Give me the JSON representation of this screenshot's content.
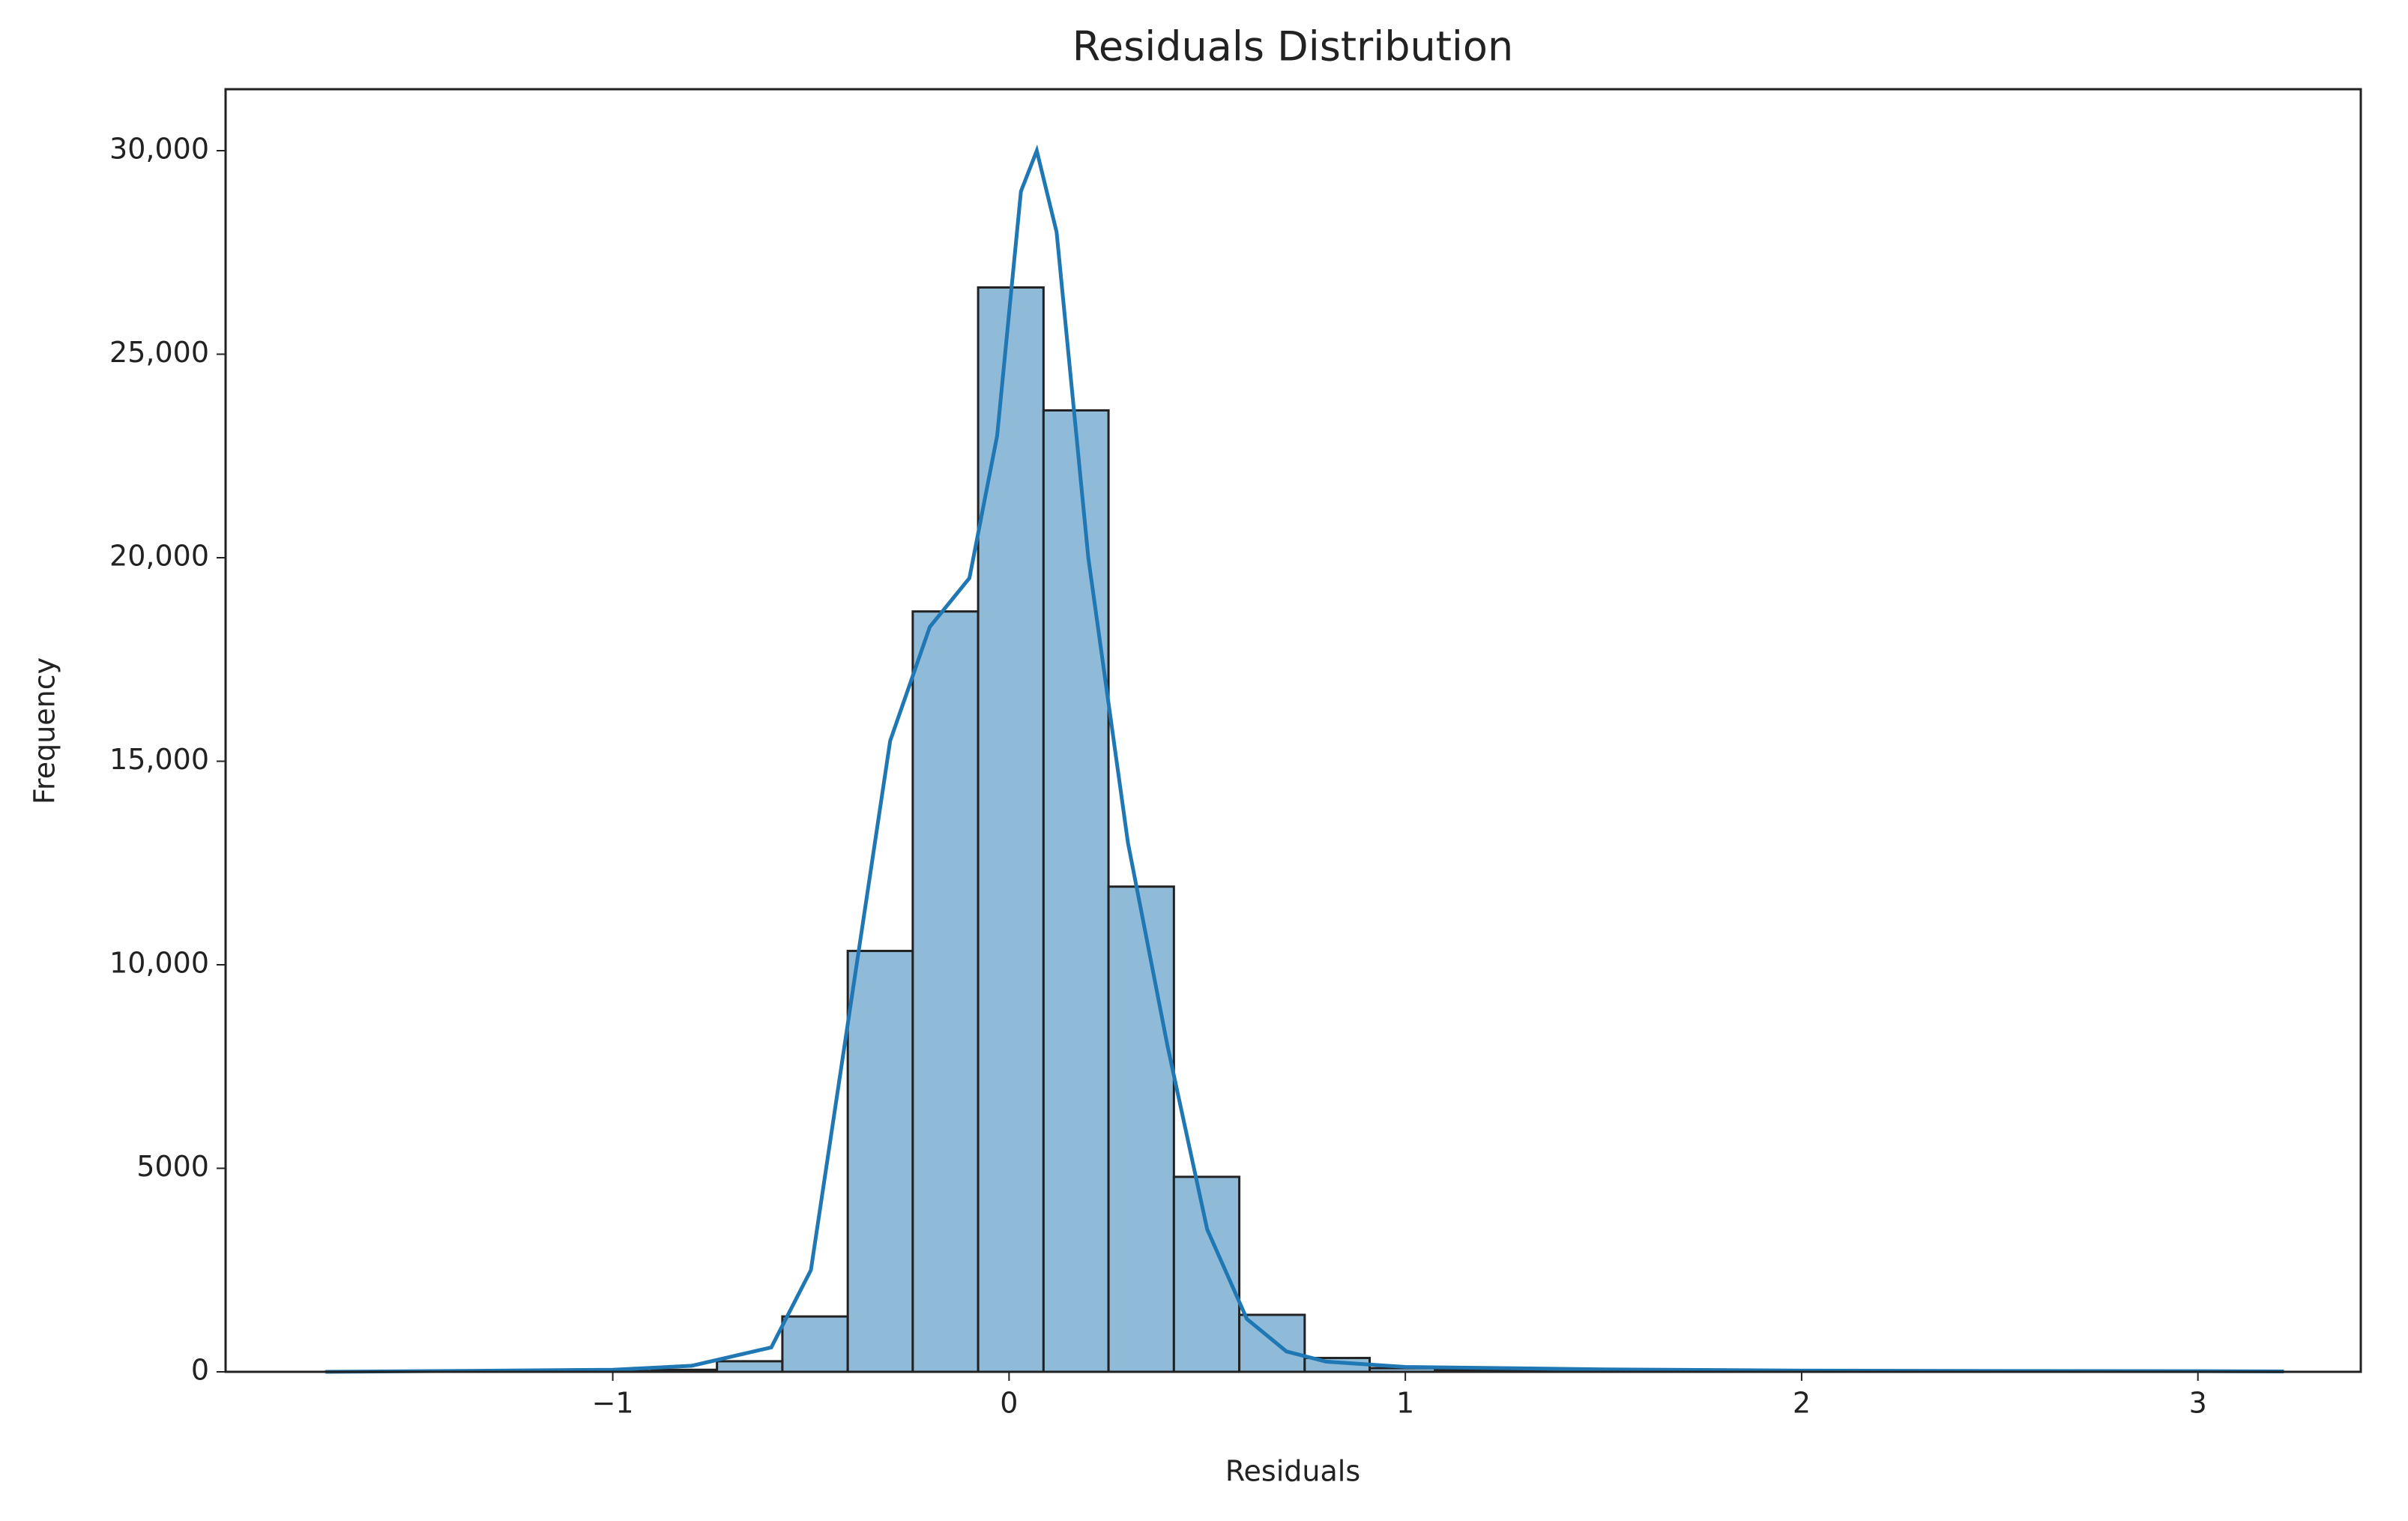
{
  "chart_data": {
    "type": "histogram",
    "title": "Residuals Distribution",
    "xlabel": "Residuals",
    "ylabel": "Frequency",
    "bins": [
      -1.725,
      -1.56,
      -1.396,
      -1.231,
      -1.066,
      -0.902,
      -0.737,
      -0.572,
      -0.407,
      -0.243,
      -0.078,
      0.087,
      0.251,
      0.416,
      0.581,
      0.746,
      0.91,
      1.075,
      1.24,
      1.404,
      1.569,
      1.734,
      1.898,
      2.063,
      2.228,
      2.393,
      2.557,
      2.722,
      2.887,
      3.051,
      3.216
    ],
    "counts": [
      2,
      3,
      5,
      10,
      20,
      50,
      260,
      1360,
      10340,
      18680,
      26640,
      23620,
      11920,
      4790,
      1400,
      340,
      90,
      40,
      25,
      20,
      15,
      12,
      10,
      8,
      6,
      5,
      4,
      3,
      2,
      2
    ],
    "color": "#8fbbd9",
    "edgecolor": "#222222",
    "kde": {
      "color": "#1f77b4",
      "x": [
        -1.725,
        -1,
        -0.8,
        -0.6,
        -0.5,
        -0.4,
        -0.3,
        -0.2,
        -0.1,
        -0.03,
        0.03,
        0.07,
        0.12,
        0.2,
        0.3,
        0.4,
        0.5,
        0.6,
        0.7,
        0.8,
        1,
        1.5,
        2,
        2.5,
        3,
        3.217
      ],
      "values": [
        0,
        50,
        150,
        600,
        2500,
        9000,
        15500,
        18300,
        19500,
        23000,
        29000,
        30000,
        28000,
        20000,
        13000,
        8000,
        3500,
        1300,
        500,
        250,
        120,
        60,
        30,
        20,
        15,
        10
      ]
    },
    "xlim": [
      -1.977,
      3.411
    ],
    "ylim": [
      0,
      31510
    ],
    "xticks": [
      {
        "value": -1,
        "label": "−1"
      },
      0,
      1,
      2,
      3
    ],
    "yticks": [
      0,
      5000,
      {
        "value": 10000,
        "label": "10,000"
      },
      {
        "value": 15000,
        "label": "15,000"
      },
      {
        "value": 20000,
        "label": "20,000"
      },
      {
        "value": 25000,
        "label": "25,000"
      },
      {
        "value": 30000,
        "label": "30,000"
      }
    ]
  }
}
